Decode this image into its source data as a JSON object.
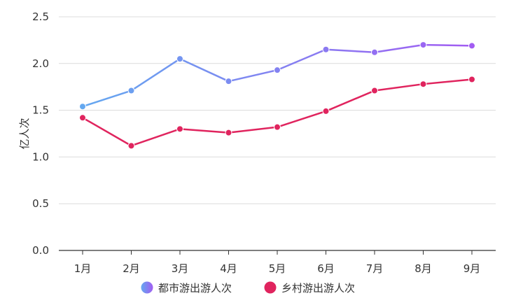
{
  "chart_data": {
    "type": "line",
    "title": "",
    "xlabel": "",
    "ylabel": "亿人次",
    "categories": [
      "1月",
      "2月",
      "3月",
      "4月",
      "5月",
      "6月",
      "7月",
      "8月",
      "9月"
    ],
    "ylim": [
      0,
      2.5
    ],
    "yticks": [
      "0.0",
      "0.5",
      "1.0",
      "1.5",
      "2.0",
      "2.5"
    ],
    "grid": true,
    "legend_position": "bottom",
    "series": [
      {
        "name": "都市游出游人次",
        "values": [
          1.54,
          1.71,
          2.05,
          1.81,
          1.93,
          2.15,
          2.12,
          2.2,
          2.19
        ],
        "color_start": "#64a8f0",
        "color_end": "#a25cf2"
      },
      {
        "name": "乡村游出游人次",
        "values": [
          1.42,
          1.12,
          1.3,
          1.26,
          1.32,
          1.49,
          1.71,
          1.78,
          1.83
        ],
        "color_start": "#e0245e",
        "color_end": "#e0245e"
      }
    ]
  }
}
